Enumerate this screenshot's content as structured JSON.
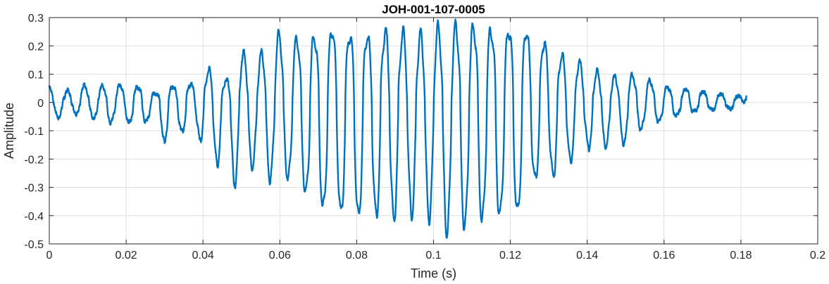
{
  "chart_data": {
    "type": "line",
    "title": "JOH-001-107-0005",
    "xlabel": "Time (s)",
    "ylabel": "Amplitude",
    "xlim": [
      0,
      0.2
    ],
    "ylim": [
      -0.5,
      0.3
    ],
    "grid": true,
    "x_ticks": [
      "0",
      "0.02",
      "0.04",
      "0.06",
      "0.08",
      "0.1",
      "0.12",
      "0.14",
      "0.16",
      "0.18",
      "0.2"
    ],
    "y_ticks": [
      "0.3",
      "0.2",
      "0.1",
      "0",
      "-0.1",
      "-0.2",
      "-0.3",
      "-0.4",
      "-0.5"
    ],
    "line_color": "#0072BD",
    "series": [
      {
        "x": [
          0,
          0.002,
          0.004,
          0.006,
          0.008,
          0.01,
          0.012,
          0.014,
          0.016,
          0.018,
          0.02,
          0.022,
          0.024,
          0.026,
          0.028,
          0.03,
          0.032,
          0.034,
          0.036,
          0.038,
          0.04,
          0.042,
          0.044,
          0.046,
          0.048,
          0.05,
          0.052,
          0.054,
          0.056,
          0.058,
          0.06,
          0.062,
          0.064,
          0.066,
          0.068,
          0.07,
          0.072,
          0.074,
          0.076,
          0.078,
          0.08,
          0.082,
          0.084,
          0.086,
          0.088,
          0.09,
          0.092,
          0.094,
          0.096,
          0.098,
          0.1,
          0.102,
          0.104,
          0.106,
          0.108,
          0.11,
          0.112,
          0.114,
          0.116,
          0.118,
          0.12,
          0.122,
          0.124,
          0.126,
          0.128,
          0.13,
          0.132,
          0.134,
          0.136,
          0.138,
          0.14,
          0.142,
          0.144,
          0.146,
          0.148,
          0.15,
          0.152,
          0.154,
          0.156,
          0.158,
          0.16,
          0.162,
          0.164,
          0.166,
          0.168,
          0.17,
          0.172,
          0.174,
          0.176,
          0.178,
          0.18,
          0.1814
        ],
        "envelope_max": [
          0.05,
          0.04,
          0.03,
          0.06,
          0.07,
          0.05,
          0.04,
          0.06,
          0.05,
          0.06,
          0.06,
          0.05,
          0.06,
          0.04,
          0.03,
          0.06,
          0.06,
          0.04,
          0.07,
          0.06,
          0.09,
          0.12,
          0.11,
          0.07,
          0.13,
          0.18,
          0.14,
          0.15,
          0.18,
          0.23,
          0.24,
          0.2,
          0.22,
          0.23,
          0.24,
          0.22,
          0.25,
          0.26,
          0.22,
          0.24,
          0.23,
          0.25,
          0.21,
          0.24,
          0.25,
          0.23,
          0.24,
          0.26,
          0.23,
          0.24,
          0.25,
          0.26,
          0.22,
          0.27,
          0.25,
          0.26,
          0.28,
          0.27,
          0.24,
          0.25,
          0.26,
          0.25,
          0.26,
          0.21,
          0.22,
          0.2,
          0.17,
          0.16,
          0.15,
          0.14,
          0.12,
          0.11,
          0.09,
          0.1,
          0.08,
          0.11,
          0.09,
          0.1,
          0.08,
          0.06,
          0.06,
          0.05,
          0.04,
          0.05,
          0.04,
          0.04,
          0.03,
          0.035,
          0.025,
          0.03,
          0.02,
          0.025
        ],
        "envelope_min": [
          -0.04,
          -0.05,
          -0.06,
          -0.03,
          -0.05,
          -0.04,
          -0.06,
          -0.09,
          -0.07,
          -0.05,
          -0.06,
          -0.09,
          -0.08,
          -0.06,
          -0.04,
          -0.15,
          -0.08,
          -0.1,
          -0.11,
          -0.08,
          -0.16,
          -0.19,
          -0.22,
          -0.14,
          -0.3,
          -0.21,
          -0.25,
          -0.19,
          -0.28,
          -0.26,
          -0.24,
          -0.26,
          -0.31,
          -0.3,
          -0.35,
          -0.38,
          -0.37,
          -0.32,
          -0.4,
          -0.38,
          -0.42,
          -0.36,
          -0.41,
          -0.39,
          -0.44,
          -0.4,
          -0.42,
          -0.38,
          -0.43,
          -0.41,
          -0.39,
          -0.44,
          -0.46,
          -0.47,
          -0.43,
          -0.47,
          -0.42,
          -0.4,
          -0.44,
          -0.38,
          -0.42,
          -0.39,
          -0.34,
          -0.28,
          -0.25,
          -0.24,
          -0.27,
          -0.22,
          -0.2,
          -0.16,
          -0.14,
          -0.22,
          -0.17,
          -0.13,
          -0.12,
          -0.15,
          -0.13,
          -0.09,
          -0.08,
          -0.07,
          -0.06,
          -0.06,
          -0.04,
          -0.05,
          -0.03,
          -0.035,
          -0.025,
          -0.03,
          -0.02,
          -0.025,
          -0.01,
          0.01
        ]
      }
    ]
  }
}
